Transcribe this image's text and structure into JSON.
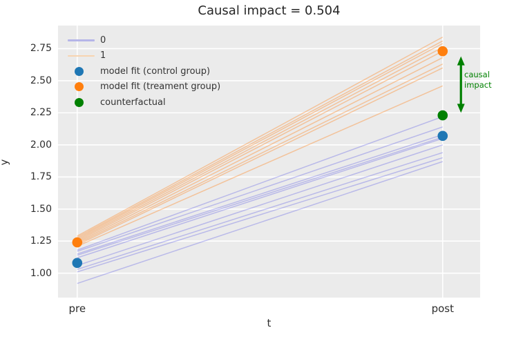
{
  "chart_data": {
    "type": "line",
    "title": "Causal impact = 0.504",
    "xlabel": "t",
    "ylabel": "y",
    "xtick_labels": [
      "pre",
      "post"
    ],
    "xtick_values": [
      0,
      1
    ],
    "ytick_labels": [
      "1.00",
      "1.25",
      "1.50",
      "1.75",
      "2.00",
      "2.25",
      "2.50",
      "2.75"
    ],
    "ytick_values": [
      1.0,
      1.25,
      1.5,
      1.75,
      2.0,
      2.25,
      2.5,
      2.75
    ],
    "xlim": [
      -0.0525,
      1.1025
    ],
    "ylim": [
      0.81,
      2.93
    ],
    "grid": true,
    "background_color": "#ebebeb",
    "grid_color": "#ffffff",
    "series": [
      {
        "name": "0",
        "description": "control group individual trajectories",
        "color": "rgba(70,70,230,0.30)",
        "legend_swatch_color": "#b5b5e8",
        "x": [
          0,
          1
        ],
        "lines": [
          [
            1.18,
            2.22
          ],
          [
            1.17,
            2.14
          ],
          [
            1.15,
            2.08
          ],
          [
            1.14,
            2.06
          ],
          [
            1.12,
            2.05
          ],
          [
            1.06,
            2.0
          ],
          [
            1.03,
            1.94
          ],
          [
            1.01,
            1.9
          ],
          [
            0.92,
            1.87
          ]
        ]
      },
      {
        "name": "1",
        "description": "treatment group individual trajectories",
        "color": "rgba(255,133,30,0.40)",
        "legend_swatch_color": "#f7d4b0",
        "x": [
          0,
          1
        ],
        "lines": [
          [
            1.29,
            2.84
          ],
          [
            1.28,
            2.81
          ],
          [
            1.27,
            2.79
          ],
          [
            1.26,
            2.76
          ],
          [
            1.25,
            2.73
          ],
          [
            1.24,
            2.68
          ],
          [
            1.23,
            2.63
          ],
          [
            1.22,
            2.6
          ],
          [
            1.21,
            2.46
          ]
        ]
      }
    ],
    "points": [
      {
        "label": "model fit (control group)",
        "x": 0,
        "y": 1.08,
        "color": "#1f77b4"
      },
      {
        "label": "model fit (control group)",
        "x": 1,
        "y": 2.07,
        "color": "#1f77b4"
      },
      {
        "label": "model fit (treament group)",
        "x": 0,
        "y": 1.24,
        "color": "#ff7f0e"
      },
      {
        "label": "model fit (treament group)",
        "x": 1,
        "y": 2.73,
        "color": "#ff7f0e"
      },
      {
        "label": "counterfactual",
        "x": 1,
        "y": 2.23,
        "color": "#008000"
      }
    ],
    "legend": {
      "position": "upper left",
      "frame": false,
      "entries": [
        {
          "label": "0",
          "swatch": "line",
          "color": "#b5b5e8"
        },
        {
          "label": "1",
          "swatch": "line",
          "color": "#f7d4b0"
        },
        {
          "label": "model fit (control group)",
          "swatch": "dot",
          "color": "#1f77b4"
        },
        {
          "label": "model fit (treament group)",
          "swatch": "dot",
          "color": "#ff7f0e"
        },
        {
          "label": "counterfactual",
          "swatch": "dot",
          "color": "#008000"
        }
      ]
    },
    "annotation": {
      "lines": [
        "causal",
        "impact"
      ],
      "color": "#008000",
      "arrow": {
        "x": 1.05,
        "y_from": 2.69,
        "y_to": 2.25,
        "style": "double-headed"
      }
    }
  }
}
